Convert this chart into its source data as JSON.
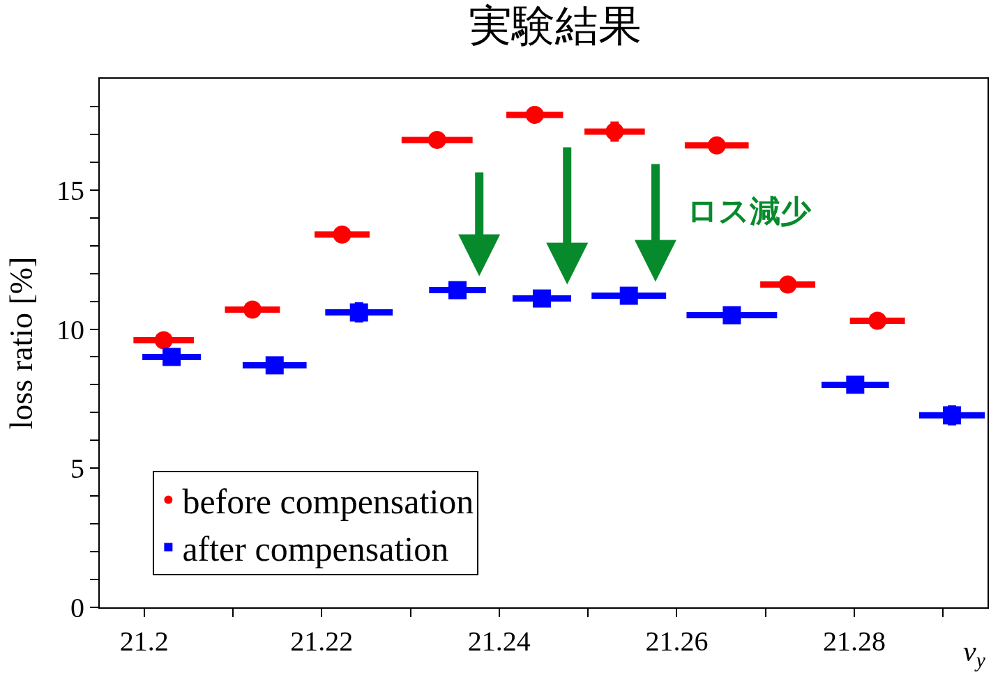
{
  "chart_data": {
    "type": "scatter",
    "title": "実験結果",
    "xlabel": "ν$_{y}$",
    "ylabel": "loss ratio [%]",
    "annotations": [
      "ロス減少"
    ],
    "xlim": [
      21.195,
      21.295
    ],
    "ylim": [
      0,
      19
    ],
    "xticks": [
      21.2,
      {
        "value": 21.21,
        "label": null
      },
      21.22,
      {
        "value": 21.23,
        "label": null
      },
      21.24,
      {
        "value": 21.25,
        "label": null
      },
      21.26,
      {
        "value": 21.27,
        "label": null
      },
      21.28,
      {
        "value": 21.29,
        "label": null
      }
    ],
    "yticks": [
      0,
      {
        "value": 1,
        "label": null
      },
      {
        "value": 2,
        "label": null
      },
      {
        "value": 3,
        "label": null
      },
      {
        "value": 4,
        "label": null
      },
      5,
      {
        "value": 6,
        "label": null
      },
      {
        "value": 7,
        "label": null
      },
      {
        "value": 8,
        "label": null
      },
      {
        "value": 9,
        "label": null
      },
      10,
      {
        "value": 11,
        "label": null
      },
      {
        "value": 12,
        "label": null
      },
      {
        "value": 13,
        "label": null
      },
      {
        "value": 14,
        "label": null
      },
      15,
      {
        "value": 16,
        "label": null
      },
      {
        "value": 17,
        "label": null
      },
      {
        "value": 18,
        "label": null
      }
    ],
    "legend": "bottom left",
    "series": [
      {
        "name": "before compensation",
        "color": "#ff0000",
        "marker": "circle",
        "x": [
          21.2022,
          21.2122,
          21.2223,
          21.233,
          21.244,
          21.253,
          21.2645,
          21.2725,
          21.2826
        ],
        "values": [
          9.6,
          10.7,
          13.4,
          16.8,
          17.7,
          17.1,
          16.6,
          11.6,
          10.3
        ],
        "xerrors": [
          0.0034,
          0.0031,
          0.0031,
          0.004,
          0.0032,
          0.0034,
          0.0036,
          0.0031,
          0.0031
        ],
        "errors": [
          null,
          null,
          null,
          null,
          null,
          0.3,
          null,
          null,
          null
        ]
      },
      {
        "name": "after compensation",
        "color": "#0000ff",
        "marker": "square",
        "x": [
          21.2031,
          21.2147,
          21.2242,
          21.2353,
          21.2448,
          21.2546,
          21.2662,
          21.2801,
          21.291
        ],
        "values": [
          9.0,
          8.7,
          10.6,
          11.4,
          11.1,
          11.2,
          10.5,
          8.0,
          6.9
        ],
        "xerrors": [
          0.0033,
          0.0036,
          0.0038,
          0.0032,
          0.0033,
          0.0042,
          0.0051,
          0.0038,
          0.0037
        ],
        "errors": [
          null,
          null,
          0.3,
          null,
          null,
          null,
          null,
          null,
          0.3
        ]
      }
    ]
  }
}
